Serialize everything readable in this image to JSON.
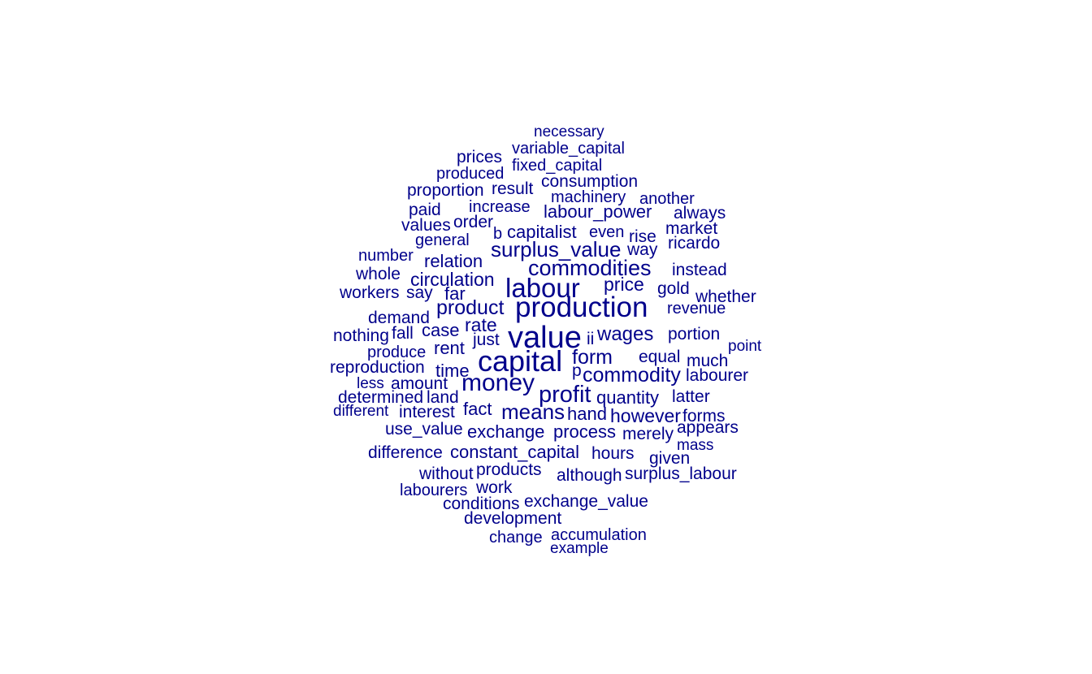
{
  "wordcloud": {
    "color": "#00008B",
    "words": [
      "necessary",
      "variable_capital",
      "prices",
      "fixed_capital",
      "produced",
      "consumption",
      "proportion",
      "result",
      "machinery",
      "another",
      "paid",
      "increase",
      "labour_power",
      "always",
      "values",
      "order",
      "market",
      "general",
      "b",
      "capitalist",
      "even",
      "rise",
      "ricardo",
      "number",
      "surplus_value",
      "way",
      "relation",
      "whole",
      "commodities",
      "instead",
      "circulation",
      "workers",
      "say",
      "labour",
      "price",
      "gold",
      "far",
      "whether",
      "demand",
      "product",
      "production",
      "revenue",
      "rate",
      "nothing",
      "fall",
      "case",
      "value",
      "portion",
      "just",
      "ii",
      "wages",
      "produce",
      "rent",
      "point",
      "capital",
      "form",
      "equal",
      "much",
      "reproduction",
      "time",
      "p",
      "commodity",
      "labourer",
      "less",
      "amount",
      "money",
      "determined",
      "land",
      "profit",
      "quantity",
      "latter",
      "different",
      "interest",
      "fact",
      "means",
      "hand",
      "however",
      "forms",
      "use_value",
      "exchange",
      "process",
      "merely",
      "appears",
      "mass",
      "difference",
      "constant_capital",
      "hours",
      "given",
      "without",
      "products",
      "although",
      "surplus_labour",
      "labourers",
      "work",
      "conditions",
      "exchange_value",
      "development",
      "change",
      "accumulation",
      "example"
    ]
  }
}
